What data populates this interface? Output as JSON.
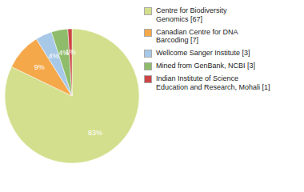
{
  "chart_data": {
    "type": "pie",
    "categories": [
      "Centre for Biodiversity\nGenomics [67]",
      "Canadian Centre for DNA\nBarcoding [7]",
      "Wellcome Sanger Institute [3]",
      "Mined from GenBank, NCBI [3]",
      "Indian Institute of Science\nEducation and Research, Mohali [1]"
    ],
    "values": [
      83,
      9,
      4,
      4,
      1
    ],
    "value_labels": [
      "83%",
      "9%",
      "4%",
      "4%",
      "1%"
    ],
    "colors": [
      "#d4df8e",
      "#f4a84a",
      "#a8c8e8",
      "#8fbc6a",
      "#cc4444"
    ],
    "data_labels": true,
    "legend": "right"
  }
}
